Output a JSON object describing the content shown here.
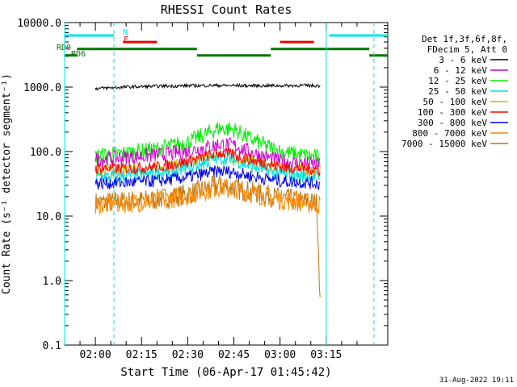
{
  "chart_data": {
    "type": "line",
    "title": "RHESSI Count Rates",
    "xlabel": "Start Time (06-Apr-17 01:45:42)",
    "ylabel": "Count Rate (s⁻¹ detector segment⁻¹)",
    "yscale": "log",
    "xlim_minutes": [
      -10,
      95
    ],
    "ylim": [
      0.1,
      10000
    ],
    "x_tick_labels": [
      "02:00",
      "02:15",
      "02:30",
      "02:45",
      "03:00",
      "03:15"
    ],
    "y_tick_labels": [
      "0.1",
      "1.0",
      "10.0",
      "100.0",
      "1000.0",
      "10000.0"
    ],
    "grid": false,
    "legend_position": "right",
    "legend_header": [
      "Det 1f,3f,6f,8f,",
      "FDecim 5, Att 0"
    ],
    "series": [
      {
        "name": "3 - 6 keV",
        "color": "#000000",
        "points": [
          [
            0,
            950
          ],
          [
            10,
            1000
          ],
          [
            20,
            1030
          ],
          [
            30,
            1050
          ],
          [
            40,
            1060
          ],
          [
            50,
            1050
          ],
          [
            60,
            1050
          ],
          [
            67,
            1060
          ],
          [
            73,
            1050
          ]
        ]
      },
      {
        "name": "6 - 12 keV",
        "color": "#cc00cc",
        "points": [
          [
            0,
            75
          ],
          [
            10,
            82
          ],
          [
            20,
            88
          ],
          [
            30,
            100
          ],
          [
            40,
            130
          ],
          [
            45,
            125
          ],
          [
            50,
            100
          ],
          [
            60,
            70
          ],
          [
            73,
            62
          ]
        ]
      },
      {
        "name": "12 - 25 keV",
        "color": "#00ee00",
        "points": [
          [
            0,
            85
          ],
          [
            10,
            95
          ],
          [
            20,
            110
          ],
          [
            30,
            140
          ],
          [
            40,
            230
          ],
          [
            45,
            220
          ],
          [
            50,
            160
          ],
          [
            60,
            100
          ],
          [
            73,
            80
          ]
        ]
      },
      {
        "name": "25 - 50 keV",
        "color": "#00dddd",
        "points": [
          [
            0,
            40
          ],
          [
            10,
            42
          ],
          [
            20,
            45
          ],
          [
            30,
            55
          ],
          [
            40,
            80
          ],
          [
            45,
            75
          ],
          [
            50,
            60
          ],
          [
            60,
            45
          ],
          [
            73,
            40
          ]
        ]
      },
      {
        "name": "50 - 100 keV",
        "color": "#bbbb00",
        "points": [
          [
            0,
            50
          ],
          [
            10,
            52
          ],
          [
            20,
            55
          ],
          [
            30,
            65
          ],
          [
            40,
            90
          ],
          [
            50,
            70
          ],
          [
            60,
            55
          ],
          [
            73,
            50
          ]
        ]
      },
      {
        "name": "100 - 300 keV",
        "color": "#ff0000",
        "points": [
          [
            0,
            55
          ],
          [
            10,
            55
          ],
          [
            20,
            58
          ],
          [
            30,
            70
          ],
          [
            40,
            95
          ],
          [
            45,
            90
          ],
          [
            50,
            75
          ],
          [
            60,
            58
          ],
          [
            73,
            52
          ]
        ]
      },
      {
        "name": "300 - 800 keV",
        "color": "#0000ee",
        "points": [
          [
            0,
            32
          ],
          [
            10,
            33
          ],
          [
            20,
            35
          ],
          [
            30,
            40
          ],
          [
            40,
            50
          ],
          [
            45,
            48
          ],
          [
            50,
            42
          ],
          [
            60,
            35
          ],
          [
            73,
            32
          ]
        ]
      },
      {
        "name": "800 - 7000 keV",
        "color": "#ff8800",
        "points": [
          [
            0,
            15
          ],
          [
            10,
            16
          ],
          [
            20,
            17
          ],
          [
            30,
            21
          ],
          [
            40,
            28
          ],
          [
            45,
            27
          ],
          [
            50,
            23
          ],
          [
            60,
            18
          ],
          [
            73,
            15
          ]
        ]
      },
      {
        "name": "7000 - 15000 keV",
        "color": "#bb7711",
        "points": [
          [
            0,
            16
          ],
          [
            10,
            17
          ],
          [
            20,
            18
          ],
          [
            30,
            22
          ],
          [
            40,
            30
          ],
          [
            50,
            24
          ],
          [
            60,
            19
          ],
          [
            72,
            16
          ],
          [
            73,
            0.55
          ]
        ]
      }
    ],
    "flag_bars": [
      {
        "label": "N",
        "color": "#00e5ee",
        "intervals": [
          [
            -10,
            6
          ],
          [
            76,
            95
          ]
        ],
        "level": 6300
      },
      {
        "label": "F",
        "color": "#ee0000",
        "intervals": [
          [
            9,
            20
          ],
          [
            60,
            71
          ]
        ],
        "level": 5000
      },
      {
        "label": "RD0",
        "color": "#007700",
        "intervals": [
          [
            -6,
            33
          ],
          [
            57,
            89
          ]
        ],
        "level": 3900
      },
      {
        "label": "RD6",
        "color": "#007700",
        "intervals": [
          [
            -10,
            -6
          ],
          [
            33,
            57
          ],
          [
            89,
            95
          ]
        ],
        "level": 3100
      }
    ],
    "vertical_markers": [
      {
        "color": "#00e5ee",
        "style": "dashed",
        "x": 6
      },
      {
        "color": "#00e5ee",
        "style": "solid",
        "x": 75
      },
      {
        "color": "#00e5ee",
        "style": "dashed",
        "x": 90.5
      },
      {
        "color": "#00e5ee",
        "style": "solid",
        "x": -10
      }
    ],
    "timestamp": "31-Aug-2022 19:11"
  }
}
